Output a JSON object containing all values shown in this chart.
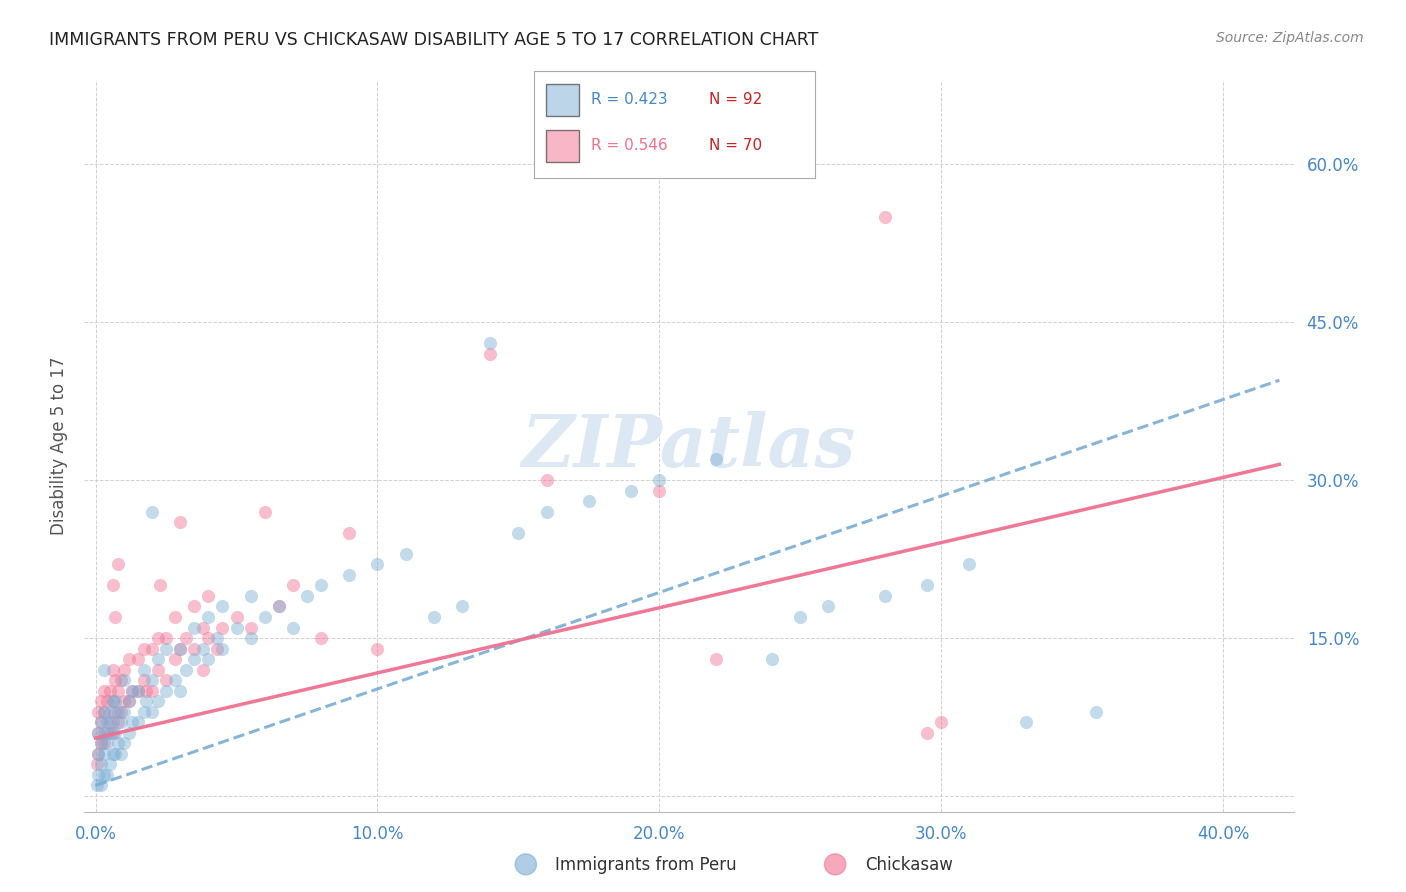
{
  "title": "IMMIGRANTS FROM PERU VS CHICKASAW DISABILITY AGE 5 TO 17 CORRELATION CHART",
  "source": "Source: ZipAtlas.com",
  "ylabel": "Disability Age 5 to 17",
  "x_ticks": [
    0.0,
    0.1,
    0.2,
    0.3,
    0.4
  ],
  "x_tick_labels": [
    "0.0%",
    "10.0%",
    "20.0%",
    "30.0%",
    "40.0%"
  ],
  "y_ticks": [
    0.0,
    0.15,
    0.3,
    0.45,
    0.6
  ],
  "y_tick_labels": [
    "",
    "15.0%",
    "30.0%",
    "45.0%",
    "60.0%"
  ],
  "xlim": [
    -0.004,
    0.425
  ],
  "ylim": [
    -0.015,
    0.68
  ],
  "blue_color": "#7aadd4",
  "pink_color": "#f07090",
  "tick_color": "#4488cc",
  "grid_color": "#cccccc",
  "peru_line_x0": 0.0,
  "peru_line_y0": 0.01,
  "peru_line_x1": 0.42,
  "peru_line_y1": 0.395,
  "chickasaw_line_x0": 0.0,
  "chickasaw_line_y0": 0.055,
  "chickasaw_line_x1": 0.42,
  "chickasaw_line_y1": 0.315,
  "peru_points": [
    [
      0.0005,
      0.01
    ],
    [
      0.001,
      0.02
    ],
    [
      0.001,
      0.04
    ],
    [
      0.001,
      0.06
    ],
    [
      0.002,
      0.01
    ],
    [
      0.002,
      0.03
    ],
    [
      0.002,
      0.05
    ],
    [
      0.002,
      0.07
    ],
    [
      0.003,
      0.02
    ],
    [
      0.003,
      0.04
    ],
    [
      0.003,
      0.06
    ],
    [
      0.003,
      0.08
    ],
    [
      0.004,
      0.02
    ],
    [
      0.004,
      0.05
    ],
    [
      0.004,
      0.07
    ],
    [
      0.005,
      0.03
    ],
    [
      0.005,
      0.06
    ],
    [
      0.005,
      0.08
    ],
    [
      0.006,
      0.04
    ],
    [
      0.006,
      0.07
    ],
    [
      0.007,
      0.04
    ],
    [
      0.007,
      0.06
    ],
    [
      0.007,
      0.09
    ],
    [
      0.008,
      0.05
    ],
    [
      0.008,
      0.08
    ],
    [
      0.009,
      0.04
    ],
    [
      0.009,
      0.07
    ],
    [
      0.01,
      0.05
    ],
    [
      0.01,
      0.08
    ],
    [
      0.01,
      0.11
    ],
    [
      0.012,
      0.06
    ],
    [
      0.012,
      0.09
    ],
    [
      0.013,
      0.07
    ],
    [
      0.013,
      0.1
    ],
    [
      0.015,
      0.07
    ],
    [
      0.015,
      0.1
    ],
    [
      0.017,
      0.08
    ],
    [
      0.017,
      0.12
    ],
    [
      0.018,
      0.09
    ],
    [
      0.02,
      0.08
    ],
    [
      0.02,
      0.11
    ],
    [
      0.022,
      0.09
    ],
    [
      0.022,
      0.13
    ],
    [
      0.025,
      0.1
    ],
    [
      0.025,
      0.14
    ],
    [
      0.028,
      0.11
    ],
    [
      0.03,
      0.1
    ],
    [
      0.03,
      0.14
    ],
    [
      0.032,
      0.12
    ],
    [
      0.035,
      0.13
    ],
    [
      0.035,
      0.16
    ],
    [
      0.038,
      0.14
    ],
    [
      0.04,
      0.13
    ],
    [
      0.04,
      0.17
    ],
    [
      0.043,
      0.15
    ],
    [
      0.045,
      0.14
    ],
    [
      0.045,
      0.18
    ],
    [
      0.05,
      0.16
    ],
    [
      0.055,
      0.15
    ],
    [
      0.055,
      0.19
    ],
    [
      0.06,
      0.17
    ],
    [
      0.065,
      0.18
    ],
    [
      0.07,
      0.16
    ],
    [
      0.075,
      0.19
    ],
    [
      0.08,
      0.2
    ],
    [
      0.09,
      0.21
    ],
    [
      0.1,
      0.22
    ],
    [
      0.11,
      0.23
    ],
    [
      0.12,
      0.17
    ],
    [
      0.13,
      0.18
    ],
    [
      0.14,
      0.43
    ],
    [
      0.15,
      0.25
    ],
    [
      0.16,
      0.27
    ],
    [
      0.175,
      0.28
    ],
    [
      0.19,
      0.29
    ],
    [
      0.2,
      0.3
    ],
    [
      0.22,
      0.32
    ],
    [
      0.24,
      0.13
    ],
    [
      0.25,
      0.17
    ],
    [
      0.26,
      0.18
    ],
    [
      0.28,
      0.19
    ],
    [
      0.295,
      0.2
    ],
    [
      0.31,
      0.22
    ],
    [
      0.33,
      0.07
    ],
    [
      0.355,
      0.08
    ],
    [
      0.02,
      0.27
    ],
    [
      0.003,
      0.12
    ],
    [
      0.006,
      0.09
    ]
  ],
  "chickasaw_points": [
    [
      0.0005,
      0.03
    ],
    [
      0.001,
      0.04
    ],
    [
      0.001,
      0.06
    ],
    [
      0.001,
      0.08
    ],
    [
      0.002,
      0.05
    ],
    [
      0.002,
      0.07
    ],
    [
      0.002,
      0.09
    ],
    [
      0.003,
      0.05
    ],
    [
      0.003,
      0.08
    ],
    [
      0.003,
      0.1
    ],
    [
      0.004,
      0.06
    ],
    [
      0.004,
      0.09
    ],
    [
      0.005,
      0.07
    ],
    [
      0.005,
      0.1
    ],
    [
      0.006,
      0.06
    ],
    [
      0.006,
      0.09
    ],
    [
      0.006,
      0.12
    ],
    [
      0.007,
      0.08
    ],
    [
      0.007,
      0.11
    ],
    [
      0.008,
      0.07
    ],
    [
      0.008,
      0.1
    ],
    [
      0.009,
      0.08
    ],
    [
      0.009,
      0.11
    ],
    [
      0.01,
      0.09
    ],
    [
      0.01,
      0.12
    ],
    [
      0.012,
      0.09
    ],
    [
      0.012,
      0.13
    ],
    [
      0.013,
      0.1
    ],
    [
      0.015,
      0.1
    ],
    [
      0.015,
      0.13
    ],
    [
      0.017,
      0.11
    ],
    [
      0.017,
      0.14
    ],
    [
      0.018,
      0.1
    ],
    [
      0.02,
      0.1
    ],
    [
      0.02,
      0.14
    ],
    [
      0.022,
      0.12
    ],
    [
      0.022,
      0.15
    ],
    [
      0.023,
      0.2
    ],
    [
      0.025,
      0.11
    ],
    [
      0.025,
      0.15
    ],
    [
      0.028,
      0.13
    ],
    [
      0.028,
      0.17
    ],
    [
      0.03,
      0.14
    ],
    [
      0.03,
      0.26
    ],
    [
      0.032,
      0.15
    ],
    [
      0.035,
      0.14
    ],
    [
      0.035,
      0.18
    ],
    [
      0.038,
      0.12
    ],
    [
      0.038,
      0.16
    ],
    [
      0.04,
      0.15
    ],
    [
      0.04,
      0.19
    ],
    [
      0.043,
      0.14
    ],
    [
      0.045,
      0.16
    ],
    [
      0.05,
      0.17
    ],
    [
      0.055,
      0.16
    ],
    [
      0.06,
      0.27
    ],
    [
      0.065,
      0.18
    ],
    [
      0.07,
      0.2
    ],
    [
      0.08,
      0.15
    ],
    [
      0.09,
      0.25
    ],
    [
      0.1,
      0.14
    ],
    [
      0.14,
      0.42
    ],
    [
      0.16,
      0.3
    ],
    [
      0.2,
      0.29
    ],
    [
      0.22,
      0.13
    ],
    [
      0.28,
      0.55
    ],
    [
      0.3,
      0.07
    ],
    [
      0.295,
      0.06
    ],
    [
      0.006,
      0.2
    ],
    [
      0.007,
      0.17
    ],
    [
      0.008,
      0.22
    ]
  ]
}
